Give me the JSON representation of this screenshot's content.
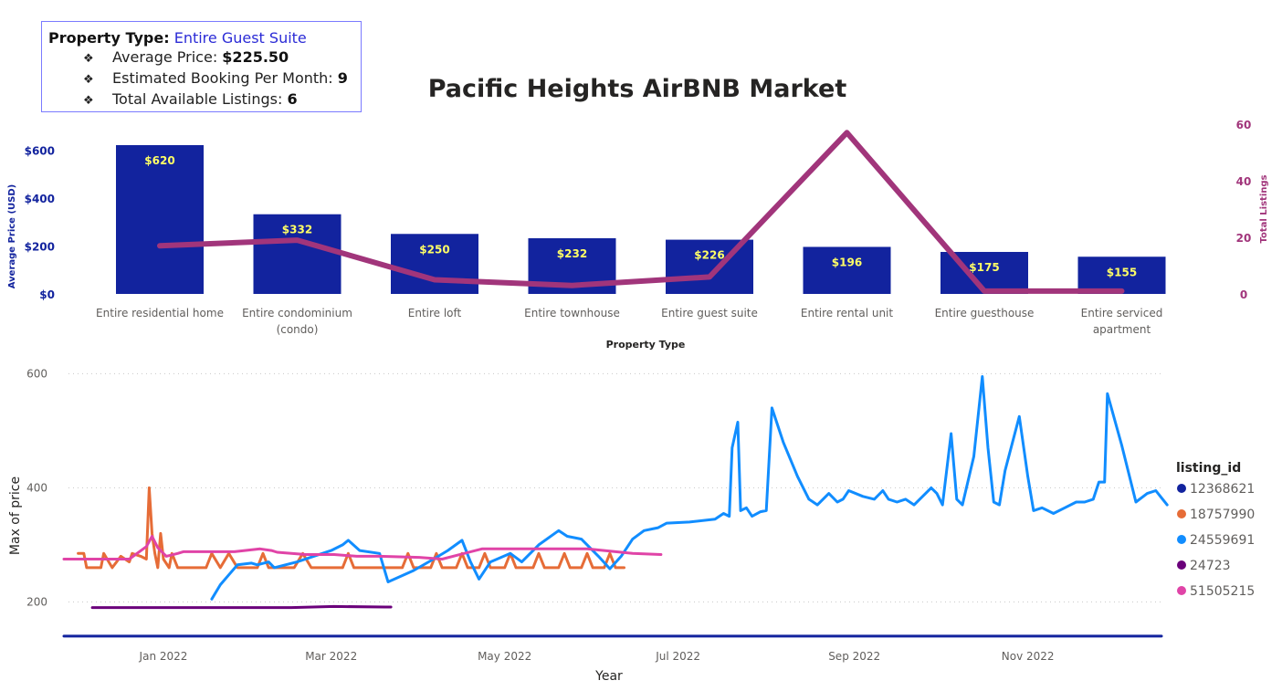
{
  "info": {
    "property_type_label": "Property Type:",
    "property_type_value": "Entire Guest Suite",
    "items": [
      {
        "label": "Average Price: ",
        "value": "$225.50"
      },
      {
        "label": "Estimated Booking Per Month: ",
        "value": "9"
      },
      {
        "label": "Total Available Listings: ",
        "value": "6"
      }
    ]
  },
  "chart_data": [
    {
      "type": "bar",
      "title": "Pacific Heights AirBNB Market",
      "xlabel": "Property Type",
      "ylabel": "Average Price (USD)",
      "y2label": "Total Listings",
      "categories": [
        "Entire residential home",
        "Entire condominium (condo)",
        "Entire loft",
        "Entire townhouse",
        "Entire guest suite",
        "Entire rental unit",
        "Entire guesthouse",
        "Entire serviced apartment"
      ],
      "series": [
        {
          "name": "Average Price (USD)",
          "type": "bar",
          "axis": "left",
          "values": [
            620,
            332,
            250,
            232,
            226,
            196,
            175,
            155
          ],
          "labels": [
            "$620",
            "$332",
            "$250",
            "$232",
            "$226",
            "$196",
            "$175",
            "$155"
          ]
        },
        {
          "name": "Total Listings",
          "type": "line",
          "axis": "right",
          "values": [
            17,
            19,
            5,
            3,
            6,
            57,
            1,
            1
          ]
        }
      ],
      "ylim": [
        0,
        620
      ],
      "y2lim": [
        0,
        60
      ],
      "yticks": [
        "$0",
        "$200",
        "$400",
        "$600"
      ],
      "y2ticks": [
        "0",
        "20",
        "40",
        "60"
      ],
      "colors": {
        "bar": "#12239e",
        "line": "#a1357b",
        "bar_label": "#ffff66",
        "left_axis": "#12239e",
        "right_axis": "#a1357b"
      }
    },
    {
      "type": "line",
      "xlabel": "Year",
      "ylabel": "Max of price",
      "legend_title": "listing_id",
      "legend_position": "right",
      "xlim": [
        "2021-11-27",
        "2022-12-18"
      ],
      "ylim": [
        135,
        615
      ],
      "xticks": [
        "Jan 2022",
        "Mar 2022",
        "May 2022",
        "Jul 2022",
        "Sep 2022",
        "Nov 2022"
      ],
      "xtick_dates": [
        "2022-01-01",
        "2022-03-01",
        "2022-05-01",
        "2022-07-01",
        "2022-09-01",
        "2022-11-01"
      ],
      "yticks": [
        "200",
        "400",
        "600"
      ],
      "ytick_values": [
        200,
        400,
        600
      ],
      "grid": "horizontal dotted",
      "series": [
        {
          "name": "12368621",
          "color": "#12239e",
          "points": [
            [
              "2021-11-27",
              140
            ],
            [
              "2022-12-18",
              140
            ]
          ]
        },
        {
          "name": "18757990",
          "color": "#e66c37",
          "points": [
            [
              "2021-12-02",
              285
            ],
            [
              "2021-12-04",
              285
            ],
            [
              "2021-12-05",
              260
            ],
            [
              "2021-12-10",
              260
            ],
            [
              "2021-12-11",
              285
            ],
            [
              "2021-12-14",
              260
            ],
            [
              "2021-12-17",
              280
            ],
            [
              "2021-12-20",
              270
            ],
            [
              "2021-12-21",
              285
            ],
            [
              "2021-12-24",
              280
            ],
            [
              "2021-12-26",
              275
            ],
            [
              "2021-12-27",
              400
            ],
            [
              "2021-12-28",
              320
            ],
            [
              "2021-12-29",
              285
            ],
            [
              "2021-12-30",
              260
            ],
            [
              "2021-12-31",
              320
            ],
            [
              "2022-01-01",
              275
            ],
            [
              "2022-01-03",
              260
            ],
            [
              "2022-01-04",
              285
            ],
            [
              "2022-01-06",
              260
            ],
            [
              "2022-01-16",
              260
            ],
            [
              "2022-01-18",
              285
            ],
            [
              "2022-01-21",
              260
            ],
            [
              "2022-01-24",
              285
            ],
            [
              "2022-01-27",
              260
            ],
            [
              "2022-02-03",
              260
            ],
            [
              "2022-02-05",
              285
            ],
            [
              "2022-02-07",
              260
            ],
            [
              "2022-02-16",
              260
            ],
            [
              "2022-02-19",
              285
            ],
            [
              "2022-02-22",
              260
            ],
            [
              "2022-03-05",
              260
            ],
            [
              "2022-03-07",
              285
            ],
            [
              "2022-03-09",
              260
            ],
            [
              "2022-03-26",
              260
            ],
            [
              "2022-03-28",
              285
            ],
            [
              "2022-03-30",
              260
            ],
            [
              "2022-04-05",
              260
            ],
            [
              "2022-04-07",
              285
            ],
            [
              "2022-04-09",
              260
            ],
            [
              "2022-04-14",
              260
            ],
            [
              "2022-04-16",
              285
            ],
            [
              "2022-04-18",
              260
            ],
            [
              "2022-04-22",
              260
            ],
            [
              "2022-04-24",
              285
            ],
            [
              "2022-04-26",
              260
            ],
            [
              "2022-05-01",
              260
            ],
            [
              "2022-05-03",
              285
            ],
            [
              "2022-05-05",
              260
            ],
            [
              "2022-05-11",
              260
            ],
            [
              "2022-05-13",
              285
            ],
            [
              "2022-05-15",
              260
            ],
            [
              "2022-05-20",
              260
            ],
            [
              "2022-05-22",
              285
            ],
            [
              "2022-05-24",
              260
            ],
            [
              "2022-05-28",
              260
            ],
            [
              "2022-05-30",
              285
            ],
            [
              "2022-06-01",
              260
            ],
            [
              "2022-06-05",
              260
            ],
            [
              "2022-06-07",
              285
            ],
            [
              "2022-06-09",
              260
            ],
            [
              "2022-06-12",
              260
            ]
          ]
        },
        {
          "name": "24559691",
          "color": "#118dff",
          "points": [
            [
              "2022-01-18",
              205
            ],
            [
              "2022-01-21",
              230
            ],
            [
              "2022-01-27",
              265
            ],
            [
              "2022-02-01",
              268
            ],
            [
              "2022-02-03",
              265
            ],
            [
              "2022-02-07",
              270
            ],
            [
              "2022-02-09",
              260
            ],
            [
              "2022-02-17",
              270
            ],
            [
              "2022-03-01",
              290
            ],
            [
              "2022-03-05",
              300
            ],
            [
              "2022-03-07",
              308
            ],
            [
              "2022-03-11",
              290
            ],
            [
              "2022-03-18",
              285
            ],
            [
              "2022-03-21",
              235
            ],
            [
              "2022-03-30",
              255
            ],
            [
              "2022-04-06",
              275
            ],
            [
              "2022-04-11",
              290
            ],
            [
              "2022-04-16",
              308
            ],
            [
              "2022-04-19",
              270
            ],
            [
              "2022-04-22",
              240
            ],
            [
              "2022-04-26",
              270
            ],
            [
              "2022-05-03",
              285
            ],
            [
              "2022-05-07",
              270
            ],
            [
              "2022-05-13",
              300
            ],
            [
              "2022-05-20",
              325
            ],
            [
              "2022-05-23",
              315
            ],
            [
              "2022-05-28",
              310
            ],
            [
              "2022-06-03",
              280
            ],
            [
              "2022-06-07",
              258
            ],
            [
              "2022-06-11",
              280
            ],
            [
              "2022-06-15",
              310
            ],
            [
              "2022-06-19",
              325
            ],
            [
              "2022-06-22",
              328
            ],
            [
              "2022-06-24",
              330
            ],
            [
              "2022-06-27",
              338
            ],
            [
              "2022-07-05",
              340
            ],
            [
              "2022-07-14",
              345
            ],
            [
              "2022-07-17",
              355
            ],
            [
              "2022-07-19",
              350
            ],
            [
              "2022-07-20",
              470
            ],
            [
              "2022-07-22",
              515
            ],
            [
              "2022-07-23",
              360
            ],
            [
              "2022-07-25",
              365
            ],
            [
              "2022-07-27",
              350
            ],
            [
              "2022-07-30",
              358
            ],
            [
              "2022-08-01",
              360
            ],
            [
              "2022-08-03",
              540
            ],
            [
              "2022-08-07",
              480
            ],
            [
              "2022-08-12",
              420
            ],
            [
              "2022-08-16",
              380
            ],
            [
              "2022-08-19",
              370
            ],
            [
              "2022-08-23",
              390
            ],
            [
              "2022-08-26",
              375
            ],
            [
              "2022-08-28",
              380
            ],
            [
              "2022-08-30",
              395
            ],
            [
              "2022-09-04",
              385
            ],
            [
              "2022-09-08",
              380
            ],
            [
              "2022-09-11",
              395
            ],
            [
              "2022-09-13",
              380
            ],
            [
              "2022-09-16",
              375
            ],
            [
              "2022-09-19",
              380
            ],
            [
              "2022-09-22",
              370
            ],
            [
              "2022-09-25",
              385
            ],
            [
              "2022-09-28",
              400
            ],
            [
              "2022-09-30",
              390
            ],
            [
              "2022-10-02",
              370
            ],
            [
              "2022-10-05",
              495
            ],
            [
              "2022-10-07",
              380
            ],
            [
              "2022-10-09",
              370
            ],
            [
              "2022-10-13",
              455
            ],
            [
              "2022-10-16",
              595
            ],
            [
              "2022-10-18",
              470
            ],
            [
              "2022-10-20",
              375
            ],
            [
              "2022-10-22",
              370
            ],
            [
              "2022-10-24",
              430
            ],
            [
              "2022-10-29",
              525
            ],
            [
              "2022-11-01",
              420
            ],
            [
              "2022-11-03",
              360
            ],
            [
              "2022-11-06",
              365
            ],
            [
              "2022-11-10",
              355
            ],
            [
              "2022-11-14",
              365
            ],
            [
              "2022-11-18",
              375
            ],
            [
              "2022-11-21",
              375
            ],
            [
              "2022-11-24",
              380
            ],
            [
              "2022-11-26",
              410
            ],
            [
              "2022-11-28",
              410
            ],
            [
              "2022-11-29",
              565
            ],
            [
              "2022-12-04",
              475
            ],
            [
              "2022-12-09",
              375
            ],
            [
              "2022-12-13",
              390
            ],
            [
              "2022-12-16",
              395
            ],
            [
              "2022-12-20",
              370
            ]
          ]
        },
        {
          "name": "24723",
          "color": "#6b007b",
          "points": [
            [
              "2021-12-07",
              190
            ],
            [
              "2022-02-15",
              190
            ],
            [
              "2022-03-02",
              192
            ],
            [
              "2022-03-20",
              191
            ],
            [
              "2022-03-22",
              191
            ]
          ]
        },
        {
          "name": "51505215",
          "color": "#e044a7",
          "points": [
            [
              "2021-11-27",
              275
            ],
            [
              "2021-12-20",
              275
            ],
            [
              "2021-12-26",
              297
            ],
            [
              "2021-12-28",
              315
            ],
            [
              "2021-12-30",
              295
            ],
            [
              "2022-01-02",
              280
            ],
            [
              "2022-01-06",
              285
            ],
            [
              "2022-01-08",
              288
            ],
            [
              "2022-01-26",
              288
            ],
            [
              "2022-02-04",
              293
            ],
            [
              "2022-02-08",
              290
            ],
            [
              "2022-02-10",
              287
            ],
            [
              "2022-02-20",
              283
            ],
            [
              "2022-03-02",
              283
            ],
            [
              "2022-03-10",
              280
            ],
            [
              "2022-03-18",
              280
            ],
            [
              "2022-04-01",
              278
            ],
            [
              "2022-04-09",
              275
            ],
            [
              "2022-04-23",
              293
            ],
            [
              "2022-05-30",
              293
            ],
            [
              "2022-06-15",
              285
            ],
            [
              "2022-06-25",
              283
            ]
          ]
        }
      ]
    }
  ]
}
